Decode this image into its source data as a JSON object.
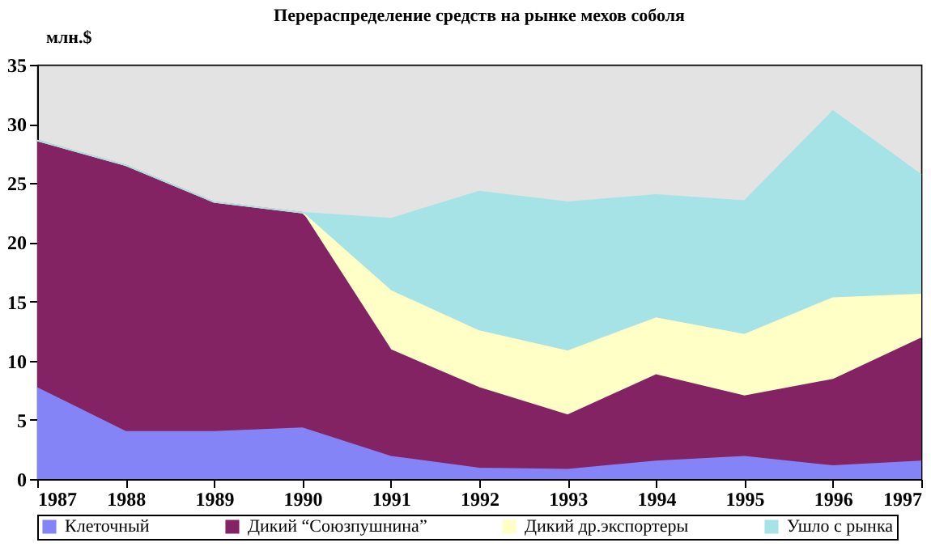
{
  "chart_data": {
    "type": "area",
    "stacked": true,
    "title": "Перераспределение средств на рынке мехов соболя",
    "ylabel": "млн.$",
    "x": [
      1987,
      1988,
      1989,
      1990,
      1991,
      1992,
      1993,
      1994,
      1995,
      1996,
      1997
    ],
    "xlim": [
      1987,
      1997
    ],
    "xticks": [
      1987,
      1988,
      1989,
      1990,
      1991,
      1992,
      1993,
      1994,
      1995,
      1996,
      1997
    ],
    "ylim": [
      0,
      35
    ],
    "yticks": [
      0,
      5,
      10,
      15,
      20,
      25,
      30,
      35
    ],
    "grid": false,
    "legend": "bottom",
    "series": [
      {
        "name": "Клеточный",
        "color": "#8484f7",
        "values": [
          7.7,
          4.0,
          4.0,
          4.3,
          1.9,
          0.9,
          0.8,
          1.5,
          1.9,
          1.1,
          1.5
        ]
      },
      {
        "name": "Дикий “Союзпушнина”",
        "color": "#842363",
        "values": [
          20.9,
          22.5,
          19.4,
          18.2,
          9.0,
          6.8,
          4.6,
          7.3,
          5.1,
          7.3,
          10.4
        ]
      },
      {
        "name": "Дикий др.экспортеры",
        "color": "#ffffc6",
        "values": [
          0,
          0,
          0,
          0,
          5.0,
          4.8,
          5.4,
          4.8,
          5.2,
          6.9,
          3.7
        ]
      },
      {
        "name": "Ушло с рынка",
        "color": "#a5e3e6",
        "values": [
          0,
          0,
          0,
          0,
          6.1,
          11.8,
          12.6,
          10.4,
          11.3,
          15.8,
          10.1
        ]
      }
    ]
  }
}
